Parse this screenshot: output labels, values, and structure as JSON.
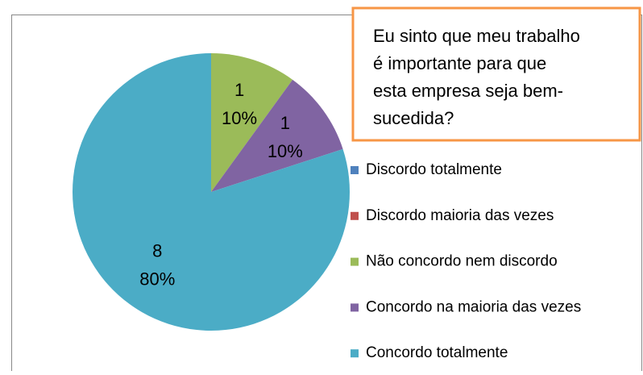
{
  "chart_data": {
    "type": "pie",
    "annotation": [
      "Eu sinto que meu trabalho",
      "é importante para que",
      "esta empresa seja bem-",
      "sucedida?"
    ],
    "categories": [
      "Discordo totalmente",
      "Discordo maioria das vezes",
      "Não concordo nem discordo",
      "Concordo na maioria das vezes",
      "Concordo totalmente"
    ],
    "values": [
      0,
      0,
      1,
      1,
      8
    ],
    "percent_labels": [
      null,
      null,
      "10%",
      "10%",
      "80%"
    ],
    "colors": [
      "#4f81bd",
      "#c0504d",
      "#9bbb59",
      "#8064a2",
      "#4bacc6"
    ],
    "legend": "right"
  }
}
